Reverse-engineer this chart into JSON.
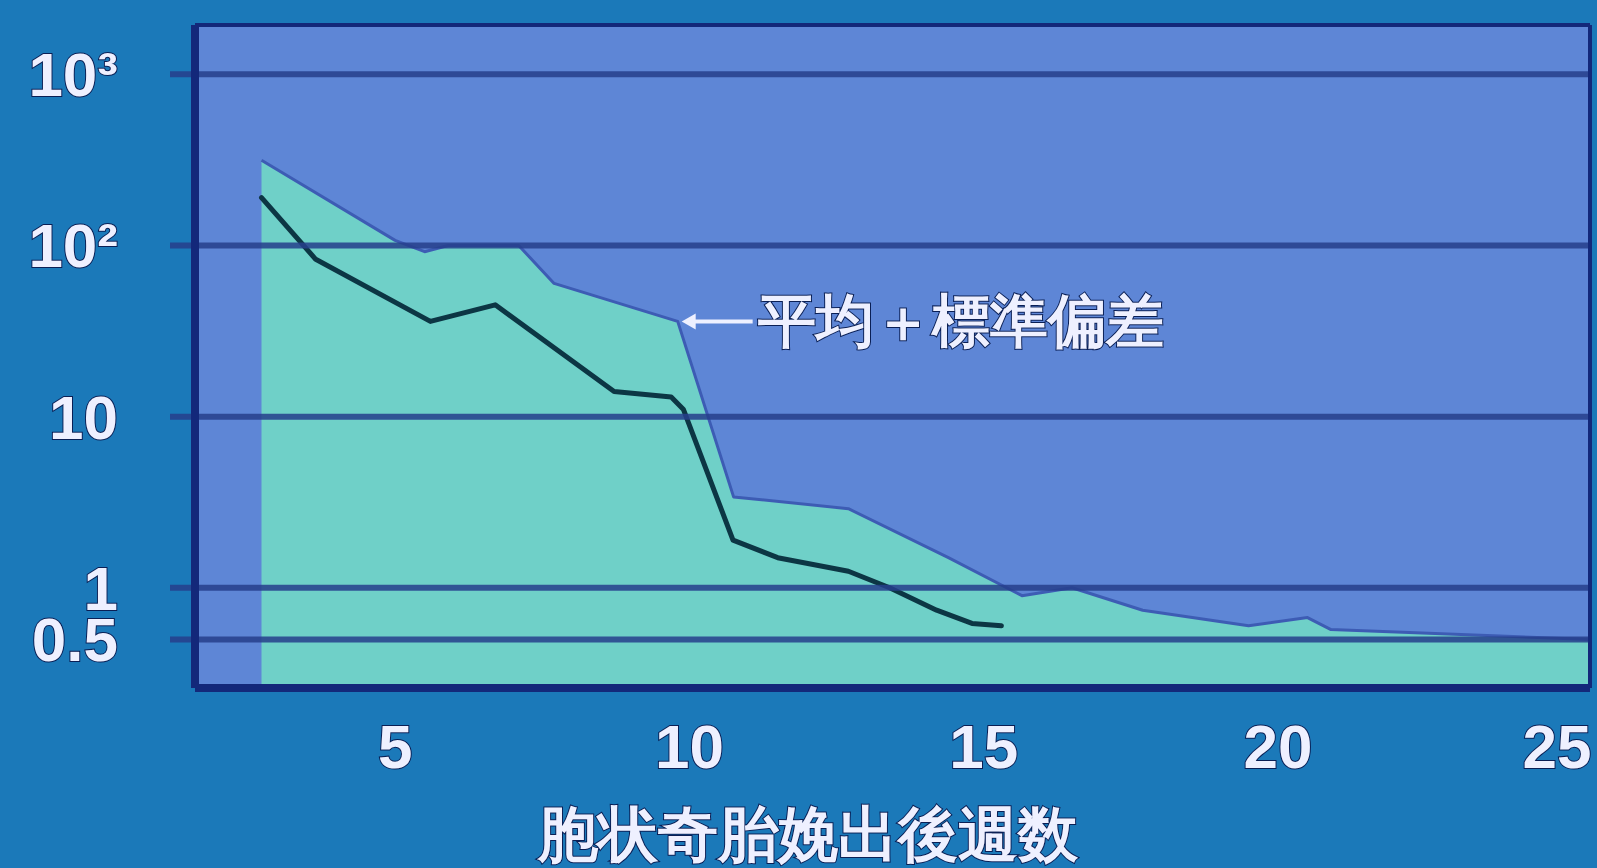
{
  "chart_data": {
    "type": "area",
    "xlabel": "胞状奇胎娩出後週数",
    "xlim": [
      1.6,
      25.3
    ],
    "xticks": [
      5,
      10,
      15,
      20,
      25
    ],
    "ylim": [
      0.26,
      1940
    ],
    "yticks": [
      {
        "value": 1000,
        "label": "10³"
      },
      {
        "value": 100,
        "label": "10²"
      },
      10,
      1,
      0.5
    ],
    "log": "y",
    "grid": "y",
    "series": [
      {
        "color": "#6fd0c8",
        "x": [
          2.73,
          5.0,
          5.5,
          5.9,
          7.1,
          7.7,
          9.8,
          10.75,
          12.7,
          14.4,
          15.65,
          16.5,
          17.7,
          19.5,
          20.5,
          20.9,
          25.3
        ],
        "values": [
          315,
          107,
          92,
          100,
          100,
          60,
          36,
          3.4,
          2.9,
          1.5,
          0.9,
          1.0,
          0.74,
          0.6,
          0.67,
          0.57,
          0.5
        ]
      },
      {
        "type": "line",
        "color": "#0c3644",
        "x": [
          2.73,
          3.65,
          5.6,
          6.7,
          8.72,
          9.69,
          9.9,
          10.74,
          11.5,
          12.7,
          13.4,
          14.2,
          14.8,
          15.3
        ],
        "values": [
          190,
          83,
          36,
          45,
          14,
          13,
          11,
          1.9,
          1.5,
          1.25,
          1.0,
          0.74,
          0.62,
          0.6
        ]
      }
    ],
    "annotations": [
      {
        "text": "平均＋標準偏差",
        "x": 9.8,
        "y": 36
      }
    ]
  }
}
